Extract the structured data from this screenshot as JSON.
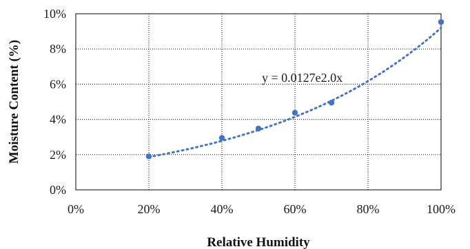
{
  "chart_data": {
    "type": "scatter",
    "xlabel": "Relative Humidity",
    "ylabel": "Moisture Content (%)",
    "xlim": [
      0,
      1
    ],
    "ylim": [
      0,
      0.1
    ],
    "x_ticks": [
      "0%",
      "20%",
      "40%",
      "60%",
      "80%",
      "100%"
    ],
    "y_ticks": [
      "0%",
      "2%",
      "4%",
      "6%",
      "8%",
      "10%"
    ],
    "grid": "dotted",
    "series": [
      {
        "x": [
          0.2,
          0.4,
          0.5,
          0.6,
          0.7,
          1.0
        ],
        "y": [
          0.019,
          0.0295,
          0.0348,
          0.0438,
          0.0495,
          0.0953
        ],
        "color": "#4472c4",
        "trendline": "exponential",
        "trendline_fit": {
          "x": [
            0.2,
            0.4,
            0.6,
            0.8,
            1.0
          ],
          "y": [
            0.0188,
            0.0278,
            0.0412,
            0.0611,
            0.093
          ]
        }
      }
    ],
    "annotation": "y = 0.0127e2.0x"
  }
}
